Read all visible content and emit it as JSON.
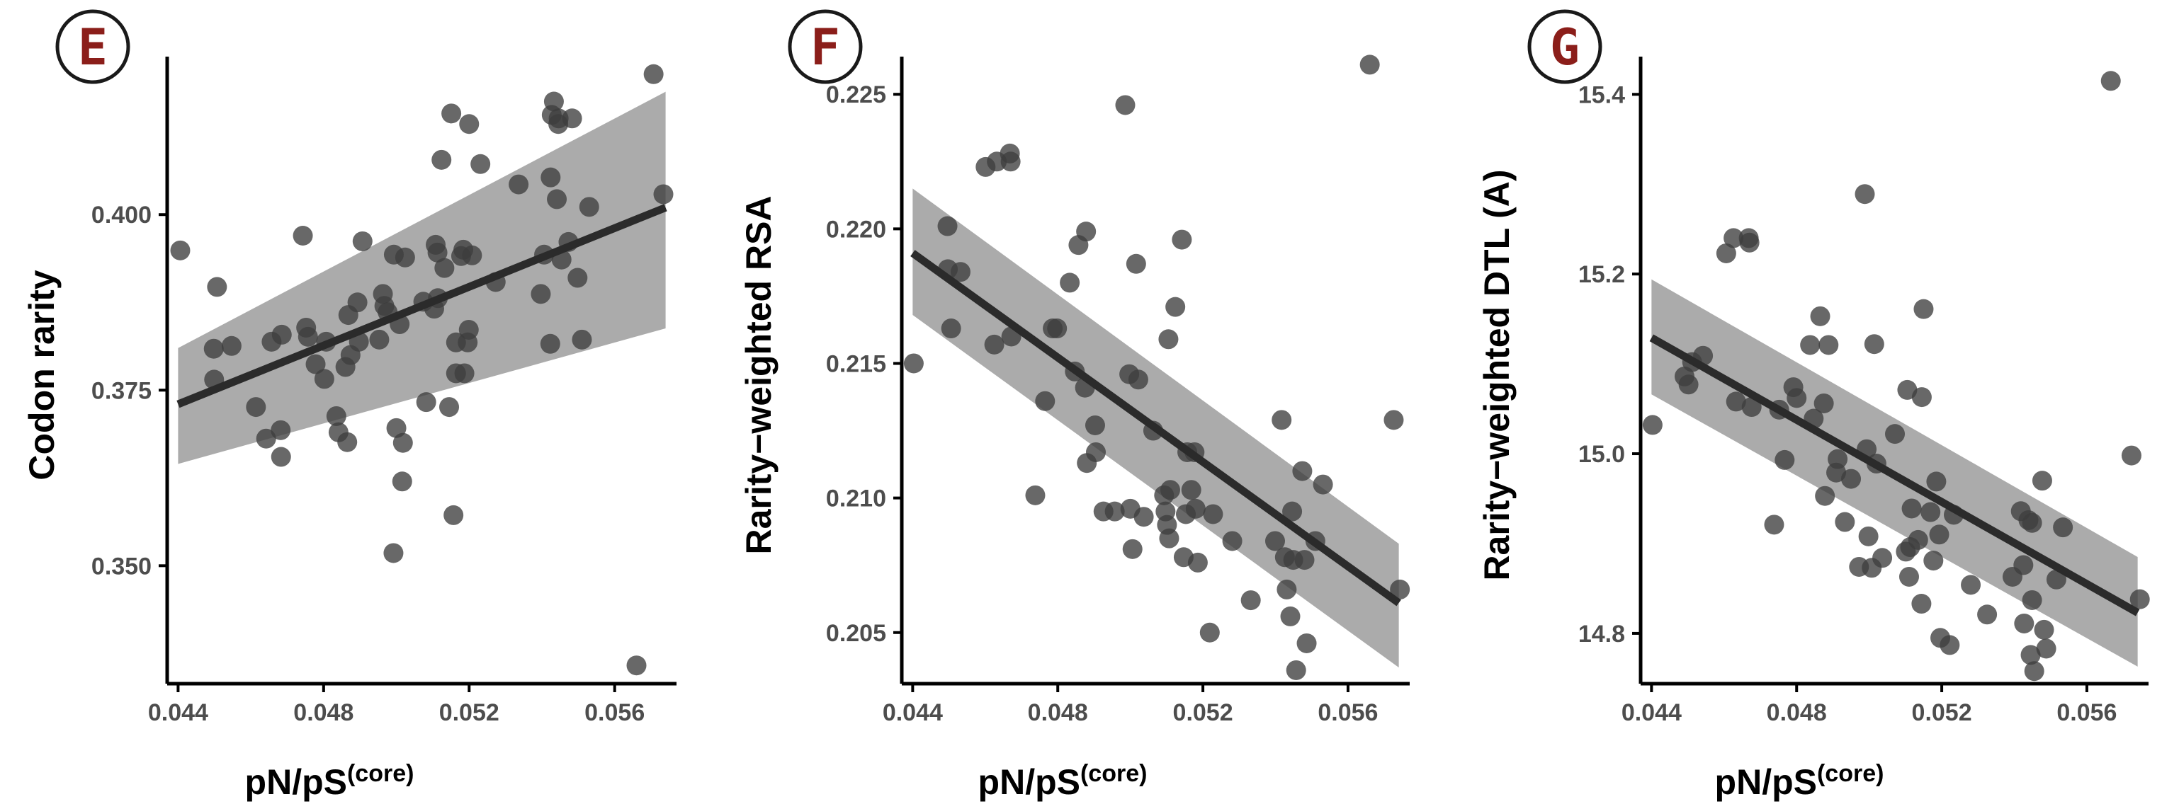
{
  "colors": {
    "point": "#3d3d3d",
    "fit_line": "#2b2b2b",
    "ribbon": "#9c9c9c",
    "badge_letter": "#8b1e1a",
    "axis": "#000000",
    "tick_text": "#4d4d4d"
  },
  "chart_data": [
    {
      "panel": "E",
      "type": "scatter",
      "xlabel": "pN/pS",
      "xlabel_sup": "(core)",
      "ylabel": "Codon rarity",
      "xlim": [
        0.0437,
        0.0577
      ],
      "ylim": [
        0.3332,
        0.4225
      ],
      "xticks": [
        0.044,
        0.048,
        0.052,
        0.056
      ],
      "xtick_labels": [
        "0.044",
        "0.048",
        "0.052",
        "0.056"
      ],
      "yticks": [
        0.35,
        0.375,
        0.4
      ],
      "ytick_labels": [
        "0.350",
        "0.375",
        "0.400"
      ],
      "grid": false,
      "fit": {
        "x": [
          0.044,
          0.0574
        ],
        "y": [
          0.373,
          0.401
        ],
        "ci_start": [
          0.3645,
          0.381
        ],
        "ci_end": [
          0.3838,
          0.4175
        ]
      },
      "points": [
        [
          0.04406,
          0.3949
        ],
        [
          0.04507,
          0.3897
        ],
        [
          0.04498,
          0.3809
        ],
        [
          0.04499,
          0.3765
        ],
        [
          0.04547,
          0.3813
        ],
        [
          0.04614,
          0.3726
        ],
        [
          0.04642,
          0.3681
        ],
        [
          0.04657,
          0.3819
        ],
        [
          0.04685,
          0.3829
        ],
        [
          0.04682,
          0.3693
        ],
        [
          0.04683,
          0.3655
        ],
        [
          0.04743,
          0.397
        ],
        [
          0.04752,
          0.3839
        ],
        [
          0.04757,
          0.3826
        ],
        [
          0.04778,
          0.3787
        ],
        [
          0.04802,
          0.3766
        ],
        [
          0.04807,
          0.3819
        ],
        [
          0.04835,
          0.3713
        ],
        [
          0.04841,
          0.369
        ],
        [
          0.0486,
          0.3783
        ],
        [
          0.04865,
          0.3676
        ],
        [
          0.04868,
          0.3857
        ],
        [
          0.04874,
          0.38
        ],
        [
          0.04893,
          0.3875
        ],
        [
          0.04897,
          0.3819
        ],
        [
          0.04907,
          0.3962
        ],
        [
          0.04953,
          0.3822
        ],
        [
          0.04963,
          0.3887
        ],
        [
          0.04967,
          0.387
        ],
        [
          0.04976,
          0.3861
        ],
        [
          0.04992,
          0.3518
        ],
        [
          0.04993,
          0.3943
        ],
        [
          0.05,
          0.3696
        ],
        [
          0.05009,
          0.3844
        ],
        [
          0.05016,
          0.362
        ],
        [
          0.05018,
          0.3675
        ],
        [
          0.05024,
          0.3939
        ],
        [
          0.05074,
          0.3876
        ],
        [
          0.05082,
          0.3733
        ],
        [
          0.05104,
          0.3866
        ],
        [
          0.05108,
          0.3957
        ],
        [
          0.05113,
          0.3946
        ],
        [
          0.05114,
          0.3881
        ],
        [
          0.05124,
          0.4078
        ],
        [
          0.05132,
          0.3924
        ],
        [
          0.05145,
          0.3726
        ],
        [
          0.05151,
          0.4144
        ],
        [
          0.05157,
          0.3572
        ],
        [
          0.05164,
          0.3818
        ],
        [
          0.05164,
          0.3774
        ],
        [
          0.05178,
          0.3941
        ],
        [
          0.05184,
          0.395
        ],
        [
          0.05187,
          0.3774
        ],
        [
          0.05196,
          0.3818
        ],
        [
          0.05199,
          0.3836
        ],
        [
          0.052,
          0.4129
        ],
        [
          0.05208,
          0.3942
        ],
        [
          0.05231,
          0.4072
        ],
        [
          0.05273,
          0.3904
        ],
        [
          0.05336,
          0.4043
        ],
        [
          0.05397,
          0.3887
        ],
        [
          0.05406,
          0.3943
        ],
        [
          0.05423,
          0.3816
        ],
        [
          0.05424,
          0.4053
        ],
        [
          0.05427,
          0.4142
        ],
        [
          0.05433,
          0.4161
        ],
        [
          0.05441,
          0.4022
        ],
        [
          0.05445,
          0.4129
        ],
        [
          0.05446,
          0.4137
        ],
        [
          0.05454,
          0.3936
        ],
        [
          0.05473,
          0.3961
        ],
        [
          0.05483,
          0.4137
        ],
        [
          0.05498,
          0.391
        ],
        [
          0.0551,
          0.3822
        ],
        [
          0.0553,
          0.4011
        ],
        [
          0.0566,
          0.3358
        ],
        [
          0.05707,
          0.42
        ],
        [
          0.05734,
          0.4029
        ]
      ]
    },
    {
      "panel": "F",
      "type": "scatter",
      "xlabel": "pN/pS",
      "xlabel_sup": "(core)",
      "ylabel": "Rarity−weighted RSA",
      "xlim": [
        0.0437,
        0.0577
      ],
      "ylim": [
        0.2031,
        0.2264
      ],
      "xticks": [
        0.044,
        0.048,
        0.052,
        0.056
      ],
      "xtick_labels": [
        "0.044",
        "0.048",
        "0.052",
        "0.056"
      ],
      "yticks": [
        0.205,
        0.21,
        0.215,
        0.22,
        0.225
      ],
      "ytick_labels": [
        "0.205",
        "0.210",
        "0.215",
        "0.220",
        "0.225"
      ],
      "grid": false,
      "fit": {
        "x": [
          0.044,
          0.0574
        ],
        "y": [
          0.2191,
          0.2061
        ],
        "ci_start": [
          0.2168,
          0.2215
        ],
        "ci_end": [
          0.2037,
          0.2083
        ]
      },
      "points": [
        [
          0.04403,
          0.215
        ],
        [
          0.04496,
          0.2201
        ],
        [
          0.04497,
          0.2185
        ],
        [
          0.04506,
          0.2163
        ],
        [
          0.04532,
          0.2184
        ],
        [
          0.04601,
          0.2223
        ],
        [
          0.04632,
          0.2225
        ],
        [
          0.04625,
          0.2157
        ],
        [
          0.04668,
          0.2228
        ],
        [
          0.0467,
          0.2225
        ],
        [
          0.04672,
          0.216
        ],
        [
          0.04738,
          0.2101
        ],
        [
          0.04765,
          0.2136
        ],
        [
          0.04786,
          0.2163
        ],
        [
          0.04798,
          0.2163
        ],
        [
          0.04833,
          0.218
        ],
        [
          0.04847,
          0.2147
        ],
        [
          0.04857,
          0.2194
        ],
        [
          0.04878,
          0.2199
        ],
        [
          0.04875,
          0.2141
        ],
        [
          0.0488,
          0.2113
        ],
        [
          0.04905,
          0.2117
        ],
        [
          0.04903,
          0.2127
        ],
        [
          0.04926,
          0.2095
        ],
        [
          0.04957,
          0.2095
        ],
        [
          0.04986,
          0.2246
        ],
        [
          0.04997,
          0.2146
        ],
        [
          0.05,
          0.2096
        ],
        [
          0.05006,
          0.2081
        ],
        [
          0.05016,
          0.2187
        ],
        [
          0.05022,
          0.2144
        ],
        [
          0.05037,
          0.2093
        ],
        [
          0.05063,
          0.2125
        ],
        [
          0.05093,
          0.2101
        ],
        [
          0.05097,
          0.2095
        ],
        [
          0.05101,
          0.209
        ],
        [
          0.05105,
          0.2159
        ],
        [
          0.05107,
          0.2085
        ],
        [
          0.0511,
          0.2103
        ],
        [
          0.05124,
          0.2171
        ],
        [
          0.05142,
          0.2196
        ],
        [
          0.05147,
          0.2078
        ],
        [
          0.05153,
          0.2094
        ],
        [
          0.05157,
          0.2117
        ],
        [
          0.05168,
          0.2103
        ],
        [
          0.05177,
          0.2117
        ],
        [
          0.0518,
          0.2096
        ],
        [
          0.05186,
          0.2076
        ],
        [
          0.05219,
          0.205
        ],
        [
          0.05228,
          0.2094
        ],
        [
          0.05281,
          0.2084
        ],
        [
          0.05332,
          0.2062
        ],
        [
          0.05399,
          0.2084
        ],
        [
          0.05417,
          0.2129
        ],
        [
          0.05426,
          0.2078
        ],
        [
          0.05431,
          0.2066
        ],
        [
          0.05441,
          0.2056
        ],
        [
          0.05446,
          0.2095
        ],
        [
          0.05449,
          0.2077
        ],
        [
          0.05457,
          0.2036
        ],
        [
          0.05474,
          0.211
        ],
        [
          0.0548,
          0.2077
        ],
        [
          0.05486,
          0.2046
        ],
        [
          0.0551,
          0.2084
        ],
        [
          0.05531,
          0.2105
        ],
        [
          0.0566,
          0.2261
        ],
        [
          0.05726,
          0.2129
        ],
        [
          0.05743,
          0.2066
        ]
      ]
    },
    {
      "panel": "G",
      "type": "scatter",
      "xlabel": "pN/pS",
      "xlabel_sup": "(core)",
      "ylabel": "Rarity−weighted DTL (A)",
      "xlim": [
        0.0437,
        0.0577
      ],
      "ylim": [
        14.744,
        15.442
      ],
      "xticks": [
        0.044,
        0.048,
        0.052,
        0.056
      ],
      "xtick_labels": [
        "0.044",
        "0.048",
        "0.052",
        "0.056"
      ],
      "yticks": [
        14.8,
        15.0,
        15.2,
        15.4
      ],
      "ytick_labels": [
        "14.8",
        "15.0",
        "15.2",
        "15.4"
      ],
      "grid": false,
      "fit": {
        "x": [
          0.044,
          0.0574
        ],
        "y": [
          15.129,
          14.823
        ],
        "ci_start": [
          15.066,
          15.194
        ],
        "ci_end": [
          14.763,
          14.885
        ]
      },
      "points": [
        [
          0.04403,
          15.032
        ],
        [
          0.04491,
          15.086
        ],
        [
          0.04502,
          15.077
        ],
        [
          0.04512,
          15.102
        ],
        [
          0.04542,
          15.109
        ],
        [
          0.04606,
          15.223
        ],
        [
          0.04626,
          15.24
        ],
        [
          0.04633,
          15.058
        ],
        [
          0.04668,
          15.24
        ],
        [
          0.0467,
          15.235
        ],
        [
          0.04676,
          15.052
        ],
        [
          0.04738,
          14.921
        ],
        [
          0.04752,
          15.049
        ],
        [
          0.04767,
          14.993
        ],
        [
          0.04791,
          15.074
        ],
        [
          0.048,
          15.062
        ],
        [
          0.04837,
          15.121
        ],
        [
          0.04847,
          15.039
        ],
        [
          0.04865,
          15.153
        ],
        [
          0.04875,
          15.056
        ],
        [
          0.04878,
          14.953
        ],
        [
          0.04888,
          15.121
        ],
        [
          0.04909,
          14.979
        ],
        [
          0.04913,
          14.994
        ],
        [
          0.04933,
          14.924
        ],
        [
          0.0495,
          14.972
        ],
        [
          0.04972,
          14.874
        ],
        [
          0.04988,
          15.289
        ],
        [
          0.04993,
          15.005
        ],
        [
          0.04998,
          14.908
        ],
        [
          0.05007,
          14.873
        ],
        [
          0.05014,
          15.122
        ],
        [
          0.0502,
          14.989
        ],
        [
          0.05036,
          14.884
        ],
        [
          0.05071,
          15.022
        ],
        [
          0.05101,
          14.891
        ],
        [
          0.05105,
          15.071
        ],
        [
          0.0511,
          14.863
        ],
        [
          0.05113,
          14.896
        ],
        [
          0.05117,
          14.939
        ],
        [
          0.05135,
          14.904
        ],
        [
          0.05144,
          14.833
        ],
        [
          0.05145,
          15.063
        ],
        [
          0.0515,
          15.161
        ],
        [
          0.05169,
          14.935
        ],
        [
          0.05177,
          14.881
        ],
        [
          0.05185,
          14.969
        ],
        [
          0.05193,
          14.91
        ],
        [
          0.05196,
          14.795
        ],
        [
          0.05222,
          14.787
        ],
        [
          0.05233,
          14.932
        ],
        [
          0.0528,
          14.854
        ],
        [
          0.05325,
          14.821
        ],
        [
          0.05395,
          14.863
        ],
        [
          0.05418,
          14.936
        ],
        [
          0.05425,
          14.876
        ],
        [
          0.05427,
          14.811
        ],
        [
          0.05439,
          14.926
        ],
        [
          0.05445,
          14.776
        ],
        [
          0.05449,
          14.837
        ],
        [
          0.05449,
          14.923
        ],
        [
          0.05455,
          14.758
        ],
        [
          0.05477,
          14.97
        ],
        [
          0.05482,
          14.804
        ],
        [
          0.05488,
          14.783
        ],
        [
          0.05516,
          14.86
        ],
        [
          0.05534,
          14.918
        ],
        [
          0.05666,
          15.415
        ],
        [
          0.05723,
          14.998
        ],
        [
          0.05746,
          14.838
        ]
      ]
    }
  ]
}
